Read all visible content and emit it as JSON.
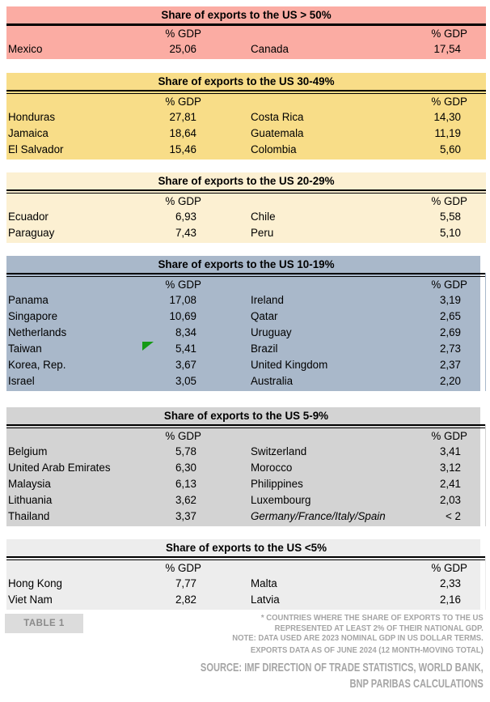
{
  "gdp_label": "% GDP",
  "marker": {
    "color": "#169A16"
  },
  "sections": [
    {
      "title": "Share of exports to the US > 50%",
      "bg": "#FBACA3",
      "rule": "single",
      "hairline": false,
      "rows": [
        {
          "l": "Mexico",
          "lv": "25,06",
          "r": "Canada",
          "rv": "17,54"
        }
      ]
    },
    {
      "title": "Share of exports to the US 30-49%",
      "bg": "#F8DD88",
      "rule": "double",
      "hairline": false,
      "rows": [
        {
          "l": "Honduras",
          "lv": "27,81",
          "r": "Costa Rica",
          "rv": "14,30"
        },
        {
          "l": "Jamaica",
          "lv": "18,64",
          "r": "Guatemala",
          "rv": "11,19"
        },
        {
          "l": "El Salvador",
          "lv": "15,46",
          "r": "Colombia",
          "rv": "5,60"
        }
      ]
    },
    {
      "title": "Share of exports to the US 20-29%",
      "bg": "#FCF0D2",
      "rule": "double",
      "hairline": false,
      "rows": [
        {
          "l": "Ecuador",
          "lv": "6,93",
          "r": "Chile",
          "rv": "5,58"
        },
        {
          "l": "Paraguay",
          "lv": "7,43",
          "r": "Peru",
          "rv": "5,10"
        }
      ]
    },
    {
      "title": "Share of exports to the US 10-19%",
      "bg": "#A9B8CA",
      "rule": "double",
      "hairline": true,
      "rows": [
        {
          "l": "Panama",
          "lv": "17,08",
          "r": "Ireland",
          "rv": "3,19"
        },
        {
          "l": "Singapore",
          "lv": "10,69",
          "r": "Qatar",
          "rv": "2,65"
        },
        {
          "l": "Netherlands",
          "lv": "8,34",
          "r": "Uruguay",
          "rv": "2,69"
        },
        {
          "l": "Taiwan",
          "lv": "5,41",
          "r": "Brazil",
          "rv": "2,73",
          "marker": true
        },
        {
          "l": "Korea, Rep.",
          "lv": "3,67",
          "r": "United Kingdom",
          "rv": "2,37"
        },
        {
          "l": "Israel",
          "lv": "3,05",
          "r": "Australia",
          "rv": "2,20"
        }
      ]
    },
    {
      "title": "Share of exports to the US 5-9%",
      "bg": "#D3D3D3",
      "rule": "double",
      "hairline": true,
      "rows": [
        {
          "l": "Belgium",
          "lv": "5,78",
          "r": "Switzerland",
          "rv": "3,41"
        },
        {
          "l": "United Arab Emirates",
          "lv": "6,30",
          "r": "Morocco",
          "rv": "3,12"
        },
        {
          "l": "Malaysia",
          "lv": "6,13",
          "r": "Philippines",
          "rv": "2,41"
        },
        {
          "l": "Lithuania",
          "lv": "3,62",
          "r": "Luxembourg",
          "rv": "2,03"
        },
        {
          "l": "Thailand",
          "lv": "3,37",
          "r": "Germany/France/Italy/Spain",
          "rv": "< 2",
          "italic_r": true
        }
      ]
    },
    {
      "title": "Share of exports to the US <5%",
      "bg": "#EDEDED",
      "rule": "double",
      "hairline": true,
      "rows": [
        {
          "l": "Hong Kong",
          "lv": "7,77",
          "r": "Malta",
          "rv": "2,33"
        },
        {
          "l": "Viet Nam",
          "lv": "2,82",
          "r": "Latvia",
          "rv": "2,16"
        }
      ]
    }
  ],
  "footer": {
    "table_label": "TABLE 1",
    "footnotes": [
      "* COUNTRIES WHERE THE SHARE OF EXPORTS TO THE US",
      "REPRESENTED AT LEAST 2% OF THEIR NATIONAL GDP.",
      "NOTE: DATA USED ARE 2023 NOMINAL GDP IN US DOLLAR TERMS.",
      "EXPORTS DATA AS OF JUNE 2024 (12 MONTH-MOVING TOTAL)"
    ],
    "source": [
      "SOURCE: IMF DIRECTION OF TRADE STATISTICS, WORLD BANK,",
      "BNP PARIBAS CALCULATIONS"
    ]
  }
}
